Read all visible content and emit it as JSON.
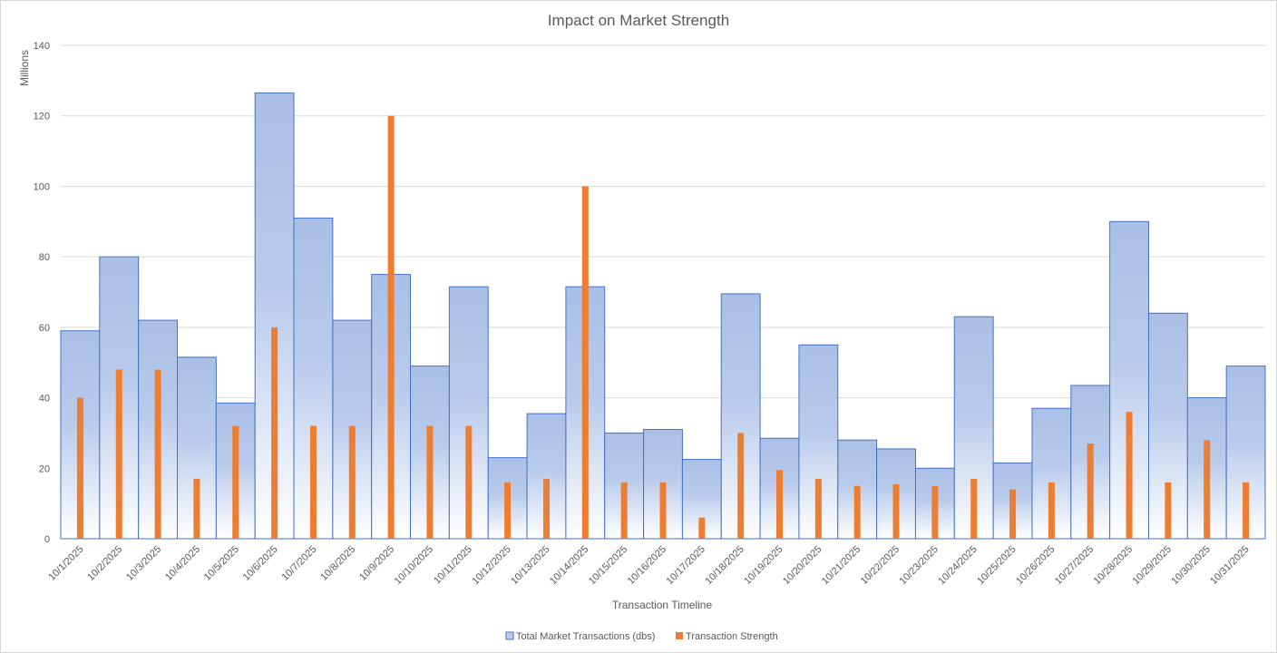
{
  "chart_data": {
    "type": "bar",
    "title": "Impact on Market Strength",
    "xlabel": "Transaction Timeline",
    "ylabel": "",
    "display_units_label": "Millions",
    "ylim": [
      0,
      140
    ],
    "yticks": [
      0,
      20,
      40,
      60,
      80,
      100,
      120,
      140
    ],
    "grid": true,
    "legend_position": "bottom",
    "categories": [
      "10/1/2025",
      "10/2/2025",
      "10/3/2025",
      "10/4/2025",
      "10/5/2025",
      "10/6/2025",
      "10/7/2025",
      "10/8/2025",
      "10/9/2025",
      "10/10/2025",
      "10/11/2025",
      "10/12/2025",
      "10/13/2025",
      "10/14/2025",
      "10/15/2025",
      "10/16/2025",
      "10/17/2025",
      "10/18/2025",
      "10/19/2025",
      "10/20/2025",
      "10/21/2025",
      "10/22/2025",
      "10/23/2025",
      "10/24/2025",
      "10/25/2025",
      "10/26/2025",
      "10/27/2025",
      "10/28/2025",
      "10/29/2025",
      "10/30/2025",
      "10/31/2025"
    ],
    "series": [
      {
        "name": "Total Market Transactions (dbs)",
        "color": "#4472c4",
        "gradient_top": "#a9bfe6",
        "gradient_bottom": "#ffffff",
        "values": [
          59,
          80,
          62,
          51.5,
          38.5,
          126.5,
          91,
          62,
          75,
          49,
          71.5,
          23,
          35.5,
          71.5,
          30,
          31,
          22.5,
          69.5,
          28.5,
          55,
          28,
          25.5,
          20,
          63,
          21.5,
          37,
          43.5,
          90,
          64,
          40,
          49
        ]
      },
      {
        "name": "Transaction Strength",
        "color": "#ed7d31",
        "values": [
          40,
          48,
          48,
          17,
          32,
          60,
          32,
          32,
          120,
          32,
          32,
          16,
          17,
          100,
          16,
          16,
          6,
          30,
          19.5,
          17,
          15,
          15.5,
          15,
          17,
          14,
          16,
          27,
          36,
          16,
          28,
          16
        ]
      }
    ]
  }
}
